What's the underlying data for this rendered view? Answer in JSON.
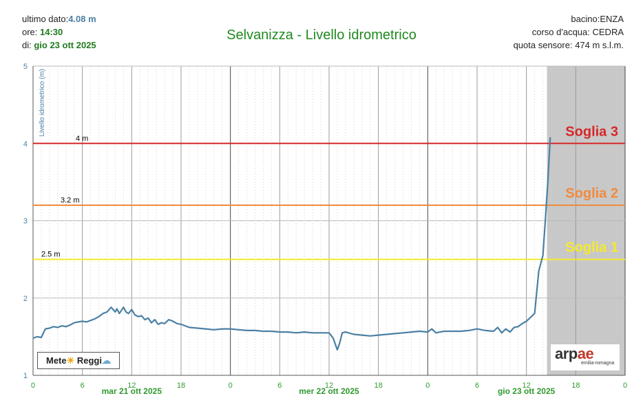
{
  "header": {
    "last_value_label": "ultimo dato:",
    "last_value": "4.08 m",
    "time_label": "ore: ",
    "time": "14:30",
    "date_label": "di: ",
    "date": "gio 23 ott 2025",
    "basin": "bacino:ENZA",
    "watercourse": "corso d'acqua: CEDRA",
    "sensor_altitude": "quota sensore: 474 m s.l.m."
  },
  "title": "Selvanizza - Livello idrometrico",
  "logos": {
    "meteo_text_1": "Mete",
    "meteo_sun": "☀",
    "meteo_text_2": " Reggi",
    "meteo_cloud": "☁",
    "arpae_main": "arp",
    "arpae_ae": "ae",
    "arpae_sub": "emilia-romagna"
  },
  "colors": {
    "line": "#4a7fa3",
    "soglia3": "#d62728",
    "soglia2": "#f28a3c",
    "soglia1": "#f5ea2a",
    "shade": "#c8c8c8",
    "day_label": "#2f9a2f"
  },
  "chart_data": {
    "type": "line",
    "title": "Selvanizza - Livello idrometrico",
    "ylabel": "Livello idrometrico (m)",
    "xlabel": "",
    "ylim": [
      1,
      5
    ],
    "yticks": [
      1,
      2,
      3,
      4,
      5
    ],
    "x_range_hours": [
      0,
      72
    ],
    "x_tick_labels": [
      "0",
      "6",
      "12",
      "18",
      "0",
      "6",
      "12",
      "18",
      "0",
      "6",
      "12",
      "18",
      "0"
    ],
    "day_labels": [
      {
        "label": "mar 21 ott 2025",
        "hour": 12
      },
      {
        "label": "mer 22 ott 2025",
        "hour": 36
      },
      {
        "label": "gio 23 ott 2025",
        "hour": 60
      }
    ],
    "shaded_from_hour": 62.5,
    "grid": true,
    "thresholds": [
      {
        "name": "Soglia 3",
        "value": 4,
        "label": "4 m",
        "color": "#d62728"
      },
      {
        "name": "Soglia 2",
        "value": 3.2,
        "label": "3.2 m",
        "color": "#f28a3c"
      },
      {
        "name": "Soglia 1",
        "value": 2.5,
        "label": "2.5 m",
        "color": "#f5ea2a"
      }
    ],
    "series": [
      {
        "x": [
          0,
          0.5,
          1,
          1.5,
          2,
          2.5,
          3,
          3.5,
          4,
          4.5,
          5,
          5.5,
          6,
          6.5,
          7,
          7.5,
          8,
          8.5,
          9,
          9.5,
          10,
          10.2,
          10.5,
          11,
          11.3,
          11.6,
          12,
          12.4,
          12.8,
          13.2,
          13.6,
          14,
          14.4,
          14.8,
          15.2,
          15.6,
          16,
          16.5,
          17,
          17.5,
          18,
          19,
          20,
          21,
          22,
          23,
          24,
          25,
          26,
          27,
          28,
          29,
          30,
          31,
          32,
          33,
          34,
          35,
          36,
          36.5,
          37,
          37.3,
          37.6,
          38,
          39,
          40,
          41,
          42,
          43,
          44,
          45,
          46,
          47,
          48,
          48.5,
          49,
          49.5,
          50,
          51,
          52,
          53,
          54,
          55,
          56,
          56.5,
          57,
          57.5,
          58,
          58.5,
          59,
          59.5,
          60,
          61,
          61.5,
          62,
          62.3,
          62.6,
          62.9
        ],
        "values": [
          1.48,
          1.5,
          1.49,
          1.6,
          1.61,
          1.63,
          1.62,
          1.64,
          1.63,
          1.65,
          1.68,
          1.69,
          1.7,
          1.69,
          1.71,
          1.73,
          1.76,
          1.8,
          1.82,
          1.88,
          1.82,
          1.86,
          1.8,
          1.88,
          1.82,
          1.8,
          1.85,
          1.78,
          1.76,
          1.77,
          1.72,
          1.74,
          1.68,
          1.72,
          1.66,
          1.68,
          1.67,
          1.72,
          1.7,
          1.67,
          1.66,
          1.62,
          1.61,
          1.6,
          1.59,
          1.6,
          1.6,
          1.59,
          1.58,
          1.58,
          1.57,
          1.57,
          1.56,
          1.56,
          1.55,
          1.56,
          1.55,
          1.55,
          1.55,
          1.48,
          1.33,
          1.42,
          1.55,
          1.56,
          1.53,
          1.52,
          1.51,
          1.52,
          1.53,
          1.54,
          1.55,
          1.56,
          1.57,
          1.56,
          1.6,
          1.55,
          1.56,
          1.57,
          1.57,
          1.57,
          1.58,
          1.6,
          1.58,
          1.57,
          1.62,
          1.55,
          1.6,
          1.56,
          1.62,
          1.63,
          1.67,
          1.7,
          1.8,
          2.35,
          2.55,
          3.0,
          3.5,
          4.08
        ]
      }
    ]
  }
}
